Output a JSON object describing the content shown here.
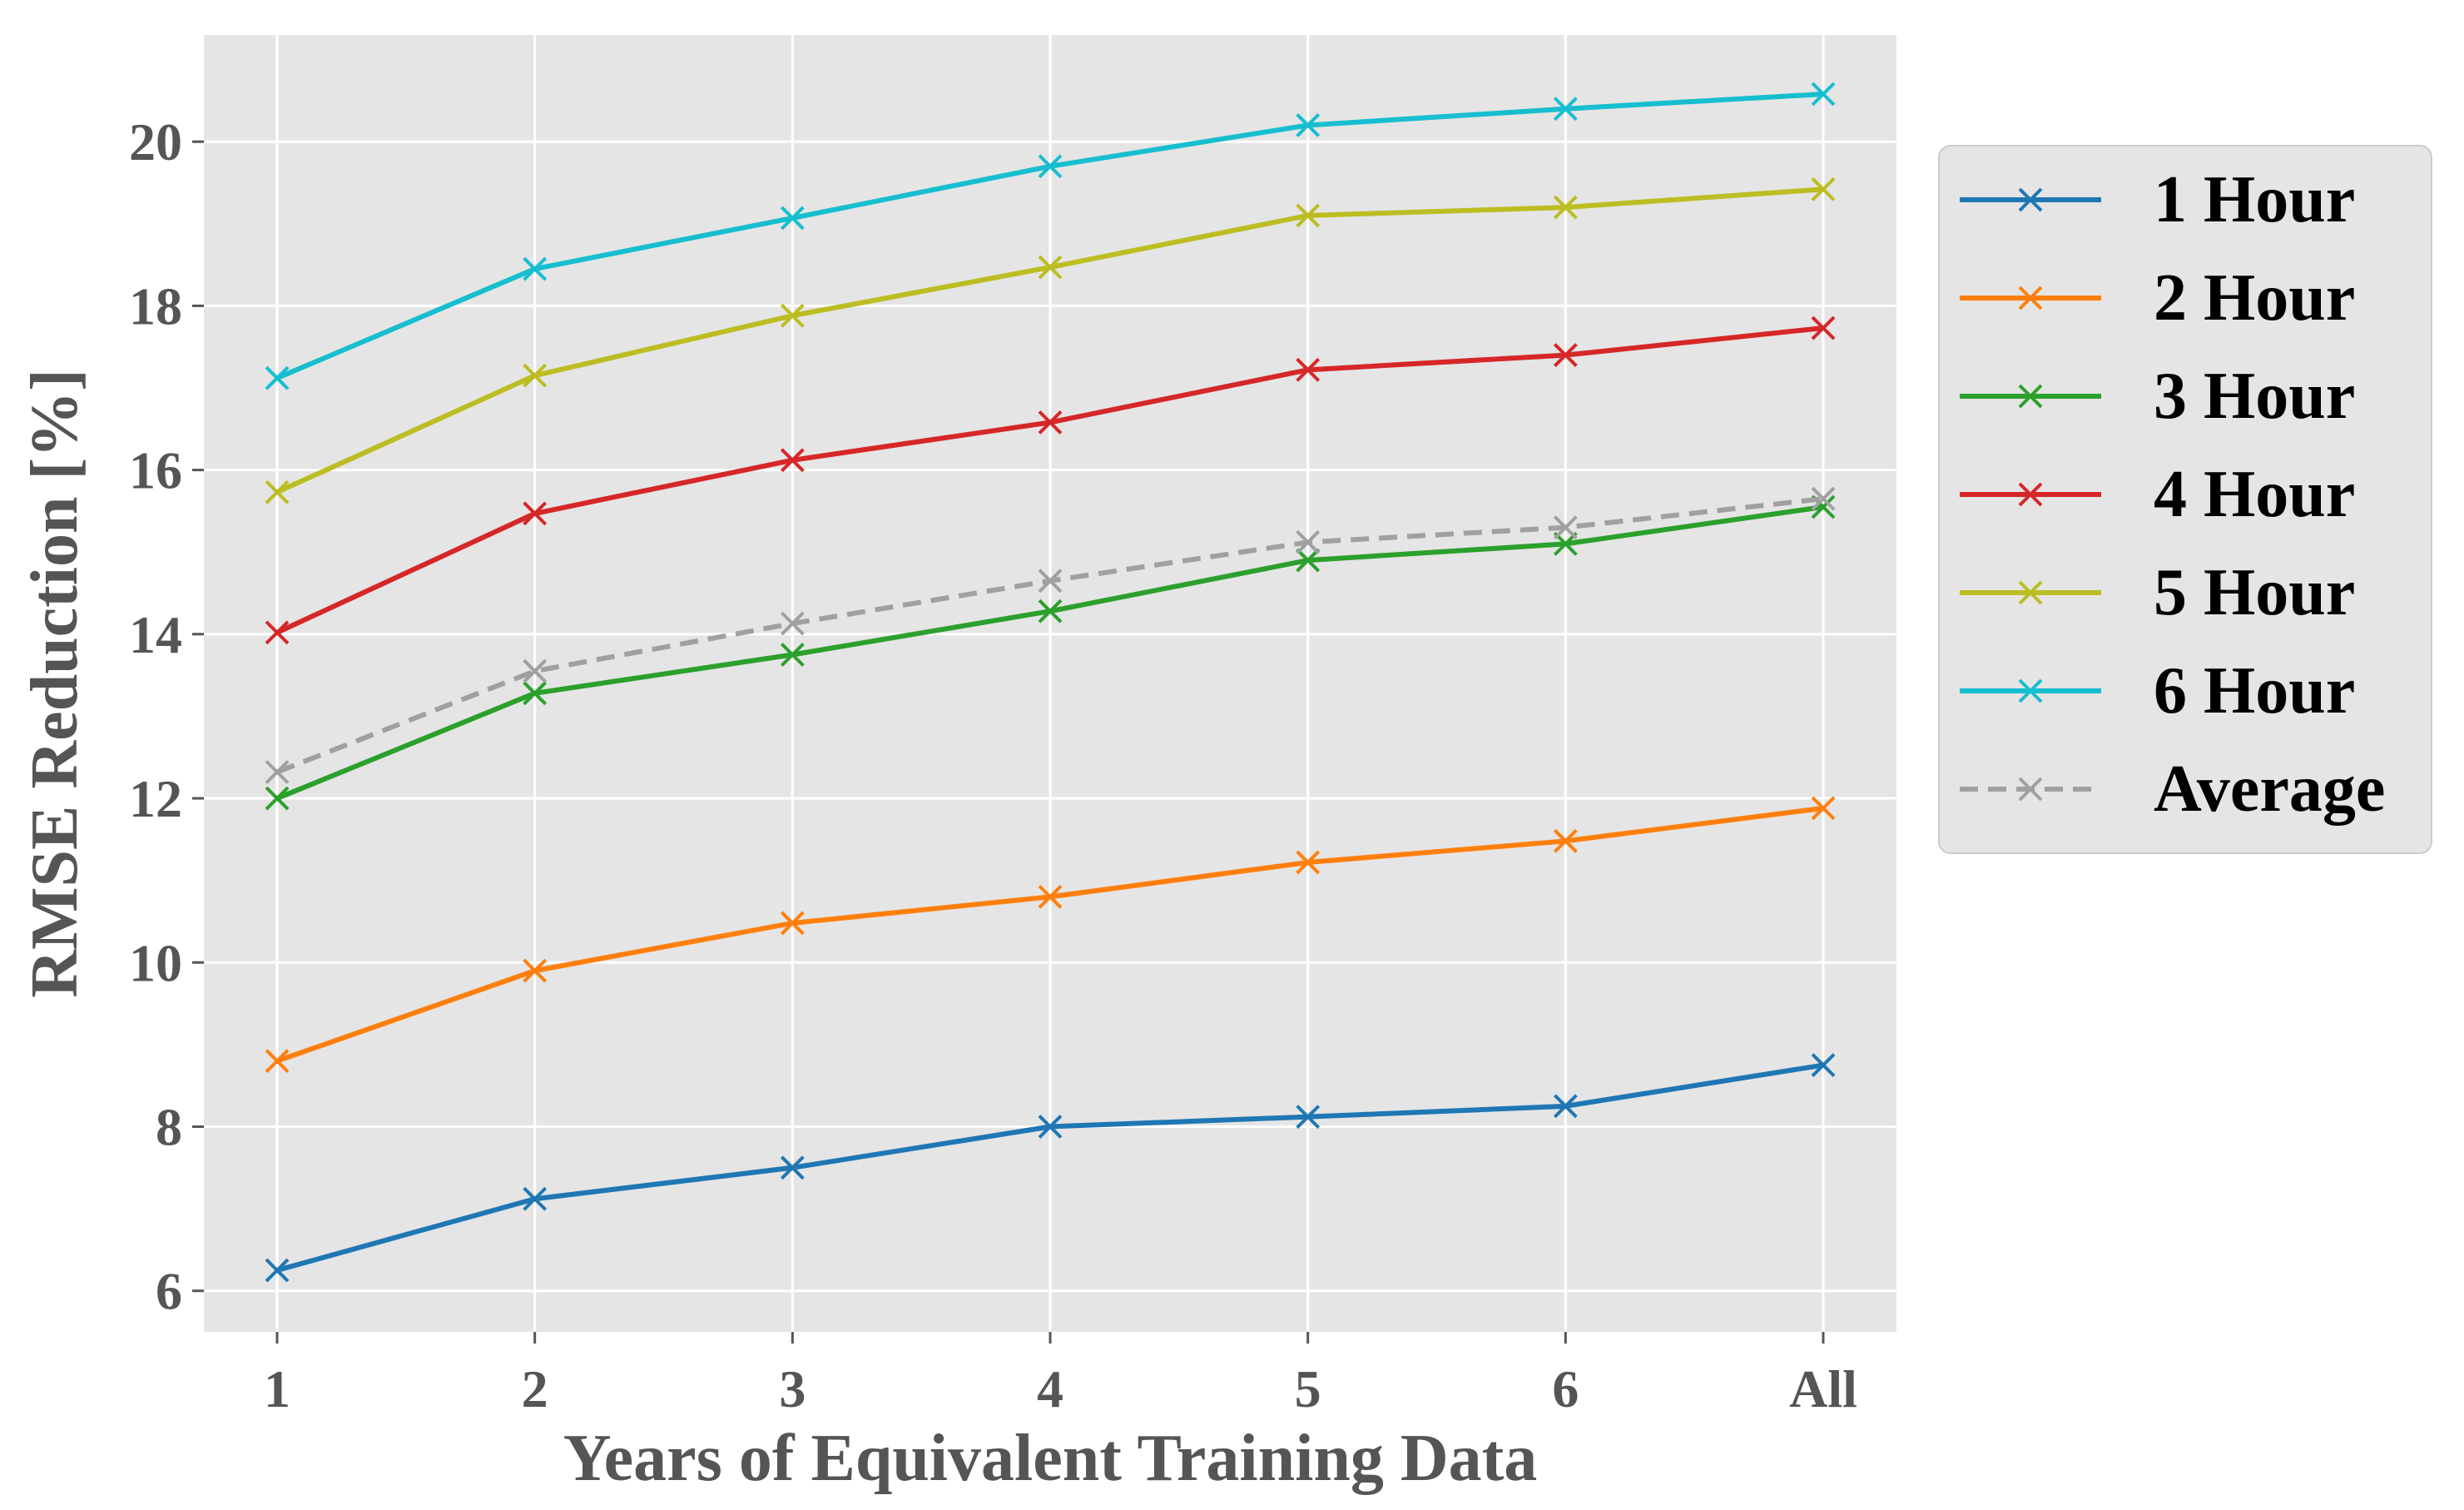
{
  "chart_data": {
    "type": "line",
    "title": "",
    "xlabel": "Years of Equivalent Training Data",
    "ylabel": "RMSE Reduction [%]",
    "categories": [
      "1",
      "2",
      "3",
      "4",
      "5",
      "6",
      "All"
    ],
    "ylim": [
      5.5,
      21.3
    ],
    "yticks": [
      6,
      8,
      10,
      12,
      14,
      16,
      18,
      20
    ],
    "grid": true,
    "legend_position": "right-outside-top",
    "series": [
      {
        "name": "1 Hour",
        "color": "#1f77b4",
        "dashed": false,
        "values": [
          6.25,
          7.12,
          7.5,
          8.0,
          8.12,
          8.25,
          8.75
        ]
      },
      {
        "name": "2 Hour",
        "color": "#ff7f0e",
        "dashed": false,
        "values": [
          8.8,
          9.9,
          10.48,
          10.8,
          11.22,
          11.48,
          11.88
        ]
      },
      {
        "name": "3 Hour",
        "color": "#2ca02c",
        "dashed": false,
        "values": [
          12.0,
          13.28,
          13.75,
          14.28,
          14.9,
          15.1,
          15.55
        ]
      },
      {
        "name": "4 Hour",
        "color": "#d62728",
        "dashed": false,
        "values": [
          14.02,
          15.47,
          16.12,
          16.58,
          17.22,
          17.4,
          17.73
        ]
      },
      {
        "name": "5 Hour",
        "color": "#bcbd22",
        "dashed": false,
        "values": [
          15.73,
          17.15,
          17.88,
          18.47,
          19.1,
          19.2,
          19.42
        ]
      },
      {
        "name": "6 Hour",
        "color": "#17becf",
        "dashed": false,
        "values": [
          17.12,
          18.45,
          19.07,
          19.7,
          20.2,
          20.4,
          20.58
        ]
      },
      {
        "name": "Average",
        "color": "#a0a0a0",
        "dashed": true,
        "values": [
          12.32,
          13.55,
          14.13,
          14.65,
          15.12,
          15.3,
          15.65
        ]
      }
    ]
  }
}
